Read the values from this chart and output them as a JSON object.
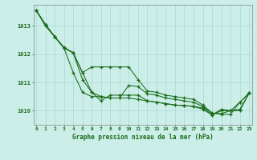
{
  "title": "Graphe pression niveau de la mer (hPa)",
  "background_color": "#cceee8",
  "grid_color": "#aad8d0",
  "line_color": "#1a6b1a",
  "marker_color": "#1a6b1a",
  "xlim": [
    -0.3,
    23.3
  ],
  "ylim": [
    1009.5,
    1013.75
  ],
  "yticks": [
    1010,
    1011,
    1012,
    1013
  ],
  "xticks": [
    0,
    1,
    2,
    3,
    4,
    5,
    6,
    7,
    8,
    9,
    10,
    11,
    12,
    13,
    14,
    15,
    16,
    17,
    18,
    19,
    20,
    21,
    22,
    23
  ],
  "series": [
    [
      1013.55,
      1013.05,
      1012.62,
      1012.22,
      1011.35,
      1010.65,
      1010.5,
      1010.5,
      1010.45,
      1010.45,
      1010.45,
      1010.4,
      1010.35,
      1010.3,
      1010.25,
      1010.2,
      1010.18,
      1010.15,
      1010.1,
      1009.85,
      1010.05,
      1010.0,
      1010.05,
      1010.62
    ],
    [
      1013.55,
      1013.05,
      1012.62,
      1012.22,
      1012.05,
      1011.35,
      1010.65,
      1010.5,
      1010.45,
      1010.45,
      1010.9,
      1010.85,
      1010.6,
      1010.55,
      1010.45,
      1010.4,
      1010.35,
      1010.3,
      1010.15,
      1009.9,
      1009.9,
      1010.0,
      1010.0,
      1010.62
    ],
    [
      1013.55,
      1013.05,
      1012.62,
      1012.22,
      1012.05,
      1011.1,
      1010.65,
      1010.35,
      1010.55,
      1010.55,
      1010.55,
      1010.55,
      1010.35,
      1010.3,
      1010.25,
      1010.2,
      1010.18,
      1010.15,
      1010.05,
      1009.85,
      1010.0,
      1010.0,
      1010.3,
      1010.62
    ],
    [
      1013.55,
      1013.0,
      1012.62,
      1012.25,
      1012.05,
      1011.35,
      1011.55,
      1011.55,
      1011.55,
      1011.55,
      1011.55,
      1011.1,
      1010.7,
      1010.65,
      1010.55,
      1010.5,
      1010.45,
      1010.4,
      1010.2,
      1009.92,
      1009.87,
      1009.87,
      1010.3,
      1010.62
    ]
  ]
}
